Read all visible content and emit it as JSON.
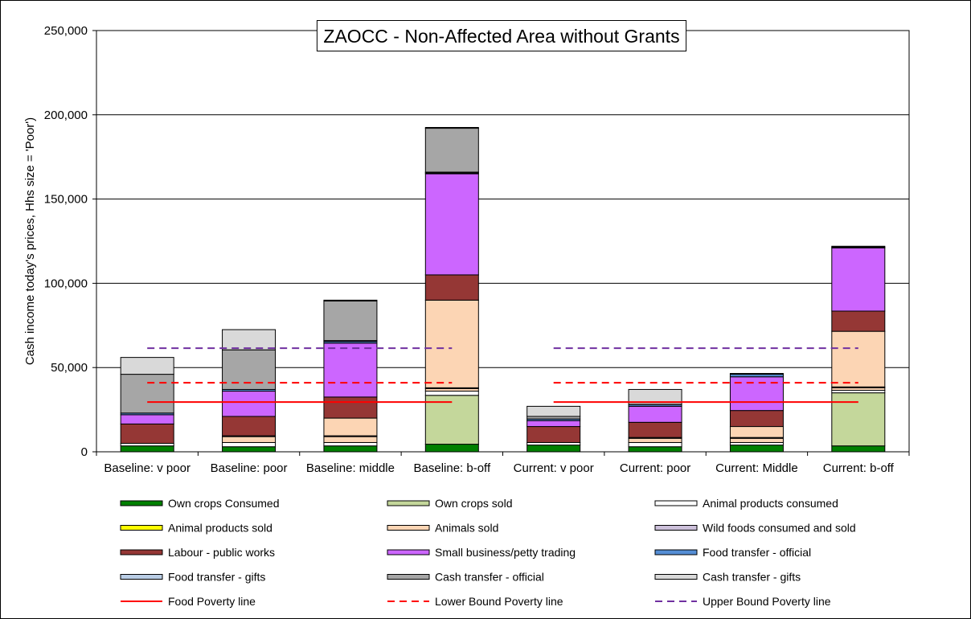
{
  "chart_data": {
    "type": "bar",
    "stacked": true,
    "title": "ZAOCC - Non-Affected Area without Grants",
    "xlabel": "",
    "ylabel": "Cash income today's prices, Hhs size = 'Poor')",
    "ylim": [
      0,
      250000
    ],
    "yticks": [
      "0",
      "50,000",
      "100,000",
      "150,000",
      "200,000",
      "250,000"
    ],
    "ytick_values": [
      0,
      50000,
      100000,
      150000,
      200000,
      250000
    ],
    "grid": true,
    "legend_position": "bottom",
    "categories": [
      "Baseline: v poor",
      "Baseline: poor",
      "Baseline: middle",
      "Baseline: b-off",
      "Current: v poor",
      "Current: poor",
      "Current: Middle",
      "Current: b-off"
    ],
    "series": [
      {
        "name": "Own crops Consumed",
        "color": "#008000",
        "values": [
          3500,
          3000,
          3500,
          4500,
          4000,
          3000,
          4000,
          3500
        ]
      },
      {
        "name": "Own crops sold",
        "color": "#C4D79B",
        "values": [
          0,
          0,
          0,
          29000,
          0,
          0,
          0,
          31500
        ]
      },
      {
        "name": "Animal products consumed",
        "color": "#FFFFFF",
        "values": [
          1500,
          2500,
          2000,
          2500,
          1500,
          2500,
          1500,
          1500
        ]
      },
      {
        "name": "Animal products sold",
        "color": "#FFFF00",
        "values": [
          0,
          0,
          0,
          0,
          0,
          0,
          0,
          0
        ]
      },
      {
        "name": "Animals sold",
        "color": "#FCD5B4",
        "values": [
          0,
          3500,
          3500,
          1500,
          0,
          2500,
          2500,
          1500
        ]
      },
      {
        "name": "Wild foods consumed and sold",
        "color": "#CCC0DA",
        "values": [
          0,
          500,
          500,
          500,
          0,
          500,
          500,
          500
        ]
      },
      {
        "name": "Animals sold",
        "color": "#FCD5B4",
        "values": [
          0,
          0,
          10500,
          52000,
          0,
          0,
          6500,
          33000
        ]
      },
      {
        "name": "Labour - public works",
        "color": "#953735",
        "values": [
          11500,
          11500,
          12500,
          15000,
          9500,
          9000,
          9500,
          12000
        ]
      },
      {
        "name": "Small business/petty trading",
        "color": "#CC66FF",
        "values": [
          5500,
          15000,
          32000,
          60000,
          3500,
          9500,
          20000,
          37500
        ]
      },
      {
        "name": "Food transfer - official",
        "color": "#558ED5",
        "values": [
          1000,
          1000,
          1000,
          500,
          1000,
          1000,
          1500,
          500
        ]
      },
      {
        "name": "Food transfer - gifts",
        "color": "#B9CDE5",
        "values": [
          0,
          0,
          500,
          500,
          0,
          0,
          500,
          0
        ]
      },
      {
        "name": "Cash transfer - official",
        "color": "#A6A6A6",
        "values": [
          23000,
          23500,
          23500,
          26000,
          1500,
          1500,
          0,
          0
        ]
      },
      {
        "name": "Cash transfer - gifts",
        "color": "#D9D9D9",
        "values": [
          10000,
          12000,
          500,
          500,
          6000,
          7500,
          0,
          500
        ]
      }
    ],
    "poverty_lines": [
      {
        "name": "Food Poverty line",
        "color": "#FF0000",
        "style": "solid",
        "value": 29500
      },
      {
        "name": "Lower Bound Poverty line",
        "color": "#FF0000",
        "style": "dashed",
        "value": 41000
      },
      {
        "name": "Upper Bound Poverty line",
        "color": "#7030A0",
        "style": "dashed",
        "value": 61500
      }
    ],
    "legend": [
      {
        "name": "Own crops Consumed",
        "color": "#008000",
        "kind": "box"
      },
      {
        "name": "Own crops sold",
        "color": "#C4D79B",
        "kind": "box"
      },
      {
        "name": "Animal products consumed",
        "color": "#FFFFFF",
        "kind": "box"
      },
      {
        "name": "Animal products sold",
        "color": "#FFFF00",
        "kind": "box"
      },
      {
        "name": "Animals sold",
        "color": "#FCD5B4",
        "kind": "box"
      },
      {
        "name": "Wild foods consumed and sold",
        "color": "#CCC0DA",
        "kind": "box"
      },
      {
        "name": "Labour - public works",
        "color": "#953735",
        "kind": "box"
      },
      {
        "name": "Small business/petty trading",
        "color": "#CC66FF",
        "kind": "box"
      },
      {
        "name": "Food transfer - official",
        "color": "#558ED5",
        "kind": "box"
      },
      {
        "name": "Food transfer - gifts",
        "color": "#B9CDE5",
        "kind": "box"
      },
      {
        "name": "Cash transfer - official",
        "color": "#A6A6A6",
        "kind": "box"
      },
      {
        "name": "Cash transfer - gifts",
        "color": "#D9D9D9",
        "kind": "box"
      },
      {
        "name": "Food Poverty line",
        "color": "#FF0000",
        "kind": "solid"
      },
      {
        "name": "Lower Bound Poverty line",
        "color": "#FF0000",
        "kind": "dashed"
      },
      {
        "name": "Upper Bound Poverty line",
        "color": "#7030A0",
        "kind": "dashed"
      }
    ]
  }
}
